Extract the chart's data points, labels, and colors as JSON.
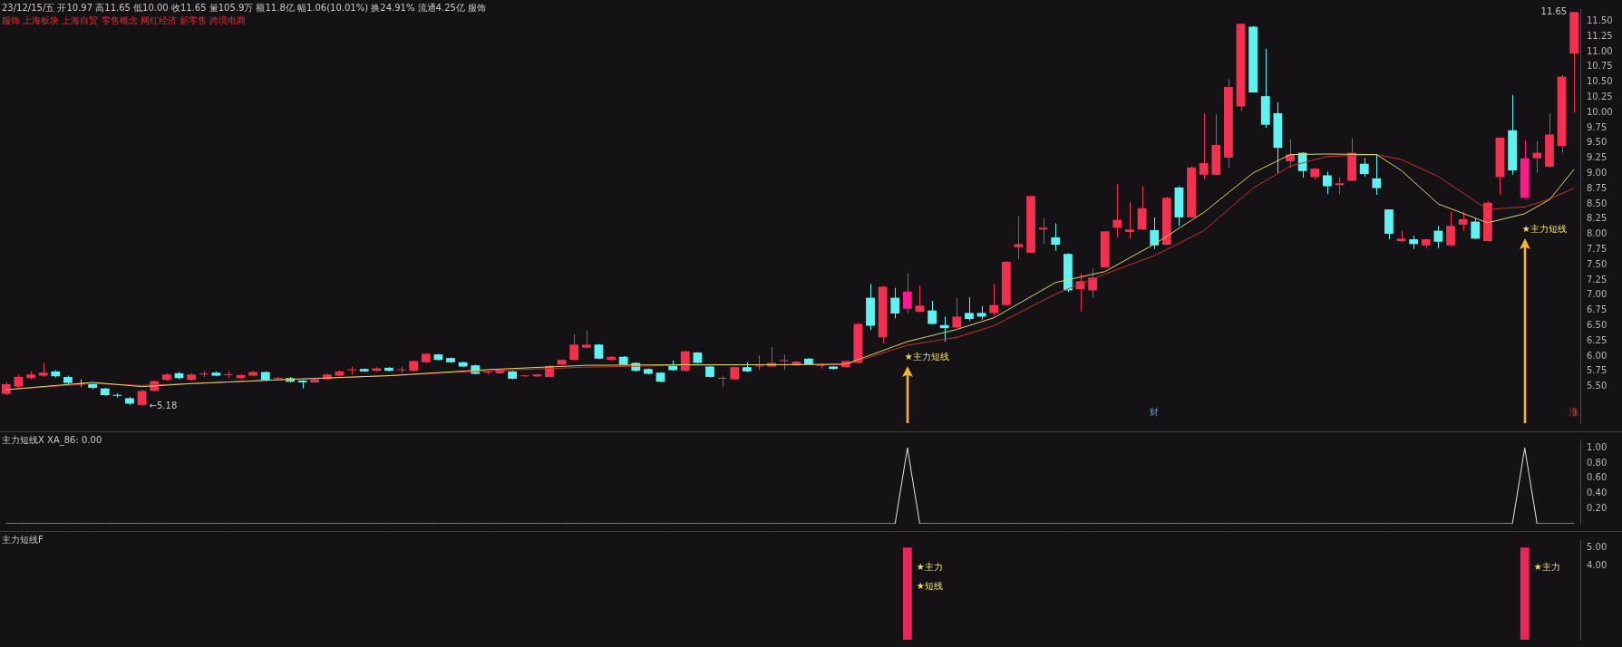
{
  "chart_data": [
    {
      "type": "candlestick",
      "title": "23/12/15/五 开10.97 高11.65 低10.00 收11.65 量105.9万 额11.8亿 幅1.06(10.01%) 换24.91% 流通4.25亿 服饰",
      "subtitle": "服饰 上海板块 上海自贸 零售概念 网红经济 新零售 跨境电商",
      "categories": [
        null,
        null,
        null,
        null,
        null,
        null,
        null,
        null,
        null,
        null,
        null,
        null,
        null,
        null,
        null,
        null,
        null,
        null,
        null,
        null,
        null,
        null,
        null,
        null,
        null,
        null,
        null,
        null,
        null,
        null,
        null,
        null,
        null,
        null,
        null,
        null,
        null,
        null,
        null,
        null,
        null,
        null,
        null,
        null,
        null,
        null,
        null,
        null,
        null,
        null,
        null,
        null,
        null,
        null,
        null,
        null,
        null,
        null,
        null,
        null,
        null,
        null,
        null,
        null,
        null,
        null,
        null,
        null,
        null,
        null,
        null,
        null,
        null,
        null,
        null,
        null,
        null,
        null,
        null,
        null,
        null,
        null,
        null,
        null,
        null,
        null,
        null,
        null,
        null,
        null,
        null,
        null,
        null,
        null,
        null,
        null,
        null,
        null,
        null,
        null,
        null,
        null,
        null,
        null,
        null,
        null,
        null,
        null,
        null,
        null,
        null,
        null,
        null,
        null,
        null,
        null,
        null,
        null,
        null,
        null,
        null,
        null,
        null,
        null,
        null,
        null,
        null,
        null
      ],
      "ohlc": [
        [
          5.38,
          5.58,
          5.36,
          5.54
        ],
        [
          5.5,
          5.7,
          5.48,
          5.66
        ],
        [
          5.64,
          5.75,
          5.62,
          5.7
        ],
        [
          5.68,
          5.89,
          5.66,
          5.73
        ],
        [
          5.75,
          5.77,
          5.65,
          5.67
        ],
        [
          5.66,
          5.68,
          5.54,
          5.56
        ],
        [
          5.55,
          5.62,
          5.5,
          5.54
        ],
        [
          5.54,
          5.56,
          5.46,
          5.48
        ],
        [
          5.47,
          5.48,
          5.35,
          5.36
        ],
        [
          5.36,
          5.39,
          5.32,
          5.35
        ],
        [
          5.31,
          5.33,
          5.2,
          5.22
        ],
        [
          5.2,
          5.45,
          5.18,
          5.43
        ],
        [
          5.43,
          5.6,
          5.42,
          5.59
        ],
        [
          5.61,
          5.72,
          5.6,
          5.7
        ],
        [
          5.72,
          5.74,
          5.62,
          5.64
        ],
        [
          5.61,
          5.72,
          5.6,
          5.7
        ],
        [
          5.7,
          5.76,
          5.66,
          5.71
        ],
        [
          5.73,
          5.75,
          5.67,
          5.68
        ],
        [
          5.69,
          5.75,
          5.64,
          5.7
        ],
        [
          5.64,
          5.71,
          5.62,
          5.69
        ],
        [
          5.68,
          5.76,
          5.67,
          5.74
        ],
        [
          5.74,
          5.75,
          5.59,
          5.6
        ],
        [
          5.63,
          5.66,
          5.6,
          5.64
        ],
        [
          5.64,
          5.66,
          5.57,
          5.58
        ],
        [
          5.6,
          5.61,
          5.47,
          5.57
        ],
        [
          5.57,
          5.63,
          5.56,
          5.62
        ],
        [
          5.62,
          5.71,
          5.61,
          5.7
        ],
        [
          5.68,
          5.77,
          5.67,
          5.75
        ],
        [
          5.77,
          5.83,
          5.7,
          5.78
        ],
        [
          5.79,
          5.8,
          5.74,
          5.75
        ],
        [
          5.76,
          5.82,
          5.75,
          5.8
        ],
        [
          5.81,
          5.82,
          5.75,
          5.76
        ],
        [
          5.77,
          5.83,
          5.72,
          5.78
        ],
        [
          5.76,
          5.93,
          5.75,
          5.92
        ],
        [
          5.9,
          6.05,
          5.89,
          6.04
        ],
        [
          6.03,
          6.04,
          5.93,
          5.94
        ],
        [
          5.97,
          5.98,
          5.89,
          5.9
        ],
        [
          5.9,
          5.91,
          5.82,
          5.83
        ],
        [
          5.85,
          5.86,
          5.7,
          5.71
        ],
        [
          5.73,
          5.76,
          5.7,
          5.74
        ],
        [
          5.72,
          5.79,
          5.71,
          5.78
        ],
        [
          5.75,
          5.76,
          5.62,
          5.63
        ],
        [
          5.67,
          5.69,
          5.66,
          5.68
        ],
        [
          5.67,
          5.71,
          5.66,
          5.7
        ],
        [
          5.66,
          5.85,
          5.65,
          5.84
        ],
        [
          5.86,
          5.95,
          5.85,
          5.94
        ],
        [
          5.94,
          6.36,
          5.93,
          6.19
        ],
        [
          6.14,
          6.42,
          6.13,
          6.19
        ],
        [
          6.19,
          6.2,
          5.95,
          5.96
        ],
        [
          5.94,
          6.0,
          5.93,
          5.99
        ],
        [
          5.99,
          6.0,
          5.85,
          5.86
        ],
        [
          5.89,
          5.9,
          5.75,
          5.76
        ],
        [
          5.79,
          5.8,
          5.7,
          5.71
        ],
        [
          5.73,
          5.74,
          5.57,
          5.58
        ],
        [
          5.84,
          5.93,
          5.76,
          5.77
        ],
        [
          5.76,
          6.09,
          5.75,
          6.08
        ],
        [
          6.06,
          6.07,
          5.88,
          5.89
        ],
        [
          5.83,
          5.84,
          5.65,
          5.66
        ],
        [
          5.63,
          5.68,
          5.49,
          5.64
        ],
        [
          5.62,
          5.83,
          5.61,
          5.82
        ],
        [
          5.82,
          5.9,
          5.74,
          5.75
        ],
        [
          5.83,
          6.01,
          5.77,
          5.84
        ],
        [
          5.83,
          6.15,
          5.82,
          5.89
        ],
        [
          5.92,
          6.03,
          5.77,
          5.93
        ],
        [
          5.85,
          5.92,
          5.84,
          5.91
        ],
        [
          5.96,
          5.97,
          5.85,
          5.86
        ],
        [
          5.84,
          5.88,
          5.8,
          5.85
        ],
        [
          5.83,
          5.84,
          5.78,
          5.79
        ],
        [
          5.82,
          5.93,
          5.81,
          5.92
        ],
        [
          5.89,
          6.55,
          5.88,
          6.53
        ],
        [
          6.96,
          7.19,
          6.43,
          6.5
        ],
        [
          6.31,
          7.15,
          6.21,
          7.14
        ],
        [
          6.96,
          7.12,
          6.62,
          6.7
        ],
        [
          6.78,
          7.36,
          6.7,
          7.06
        ],
        [
          6.73,
          7.16,
          6.72,
          6.83
        ],
        [
          6.75,
          6.91,
          6.52,
          6.53
        ],
        [
          6.51,
          6.65,
          6.24,
          6.46
        ],
        [
          6.47,
          6.96,
          6.46,
          6.65
        ],
        [
          6.71,
          6.97,
          6.58,
          6.61
        ],
        [
          6.71,
          6.82,
          6.6,
          6.65
        ],
        [
          6.71,
          7.19,
          6.66,
          6.84
        ],
        [
          6.84,
          7.56,
          6.83,
          7.55
        ],
        [
          7.79,
          8.3,
          7.59,
          7.84
        ],
        [
          7.7,
          8.63,
          7.69,
          8.63
        ],
        [
          8.08,
          8.27,
          7.84,
          8.11
        ],
        [
          7.95,
          8.18,
          7.73,
          7.83
        ],
        [
          7.68,
          7.69,
          7.05,
          7.08
        ],
        [
          7.1,
          7.36,
          6.73,
          7.23
        ],
        [
          7.08,
          7.44,
          6.96,
          7.29
        ],
        [
          7.46,
          8.05,
          7.45,
          8.05
        ],
        [
          8.11,
          8.83,
          7.95,
          8.24
        ],
        [
          8.04,
          8.53,
          7.93,
          8.08
        ],
        [
          8.08,
          8.79,
          8.07,
          8.43
        ],
        [
          8.07,
          8.28,
          7.76,
          7.82
        ],
        [
          7.83,
          8.62,
          7.82,
          8.6
        ],
        [
          8.77,
          8.79,
          8.14,
          8.28
        ],
        [
          8.28,
          9.12,
          8.27,
          9.1
        ],
        [
          8.98,
          9.99,
          8.9,
          9.17
        ],
        [
          8.98,
          9.97,
          8.97,
          9.47
        ],
        [
          9.26,
          10.55,
          9.09,
          10.42
        ],
        [
          10.1,
          11.46,
          10.02,
          11.46
        ],
        [
          11.41,
          11.42,
          10.33,
          10.33
        ],
        [
          10.27,
          11.05,
          9.75,
          9.8
        ],
        [
          9.99,
          10.17,
          9.01,
          9.42
        ],
        [
          9.2,
          9.56,
          9.09,
          9.31
        ],
        [
          9.34,
          9.35,
          8.93,
          9.04
        ],
        [
          8.94,
          9.09,
          8.9,
          9.08
        ],
        [
          8.97,
          9.03,
          8.66,
          8.79
        ],
        [
          8.81,
          8.94,
          8.66,
          8.84
        ],
        [
          8.88,
          9.58,
          8.87,
          9.34
        ],
        [
          9.16,
          9.26,
          8.95,
          8.99
        ],
        [
          8.92,
          9.31,
          8.65,
          8.76
        ],
        [
          8.41,
          8.41,
          7.92,
          8.01
        ],
        [
          7.89,
          8.06,
          7.87,
          7.93
        ],
        [
          7.92,
          7.98,
          7.76,
          7.84
        ],
        [
          7.82,
          7.93,
          7.77,
          7.92
        ],
        [
          8.06,
          8.14,
          7.77,
          7.88
        ],
        [
          7.82,
          8.37,
          7.81,
          8.14
        ],
        [
          8.16,
          8.37,
          8.06,
          8.25
        ],
        [
          8.21,
          8.26,
          7.92,
          7.93
        ],
        [
          7.89,
          8.55,
          7.88,
          8.52
        ],
        [
          8.94,
          9.59,
          8.65,
          9.59
        ],
        [
          9.71,
          10.29,
          8.98,
          9.05
        ],
        [
          9.25,
          9.55,
          8.59,
          8.6
        ],
        [
          9.25,
          9.53,
          9.01,
          9.34
        ],
        [
          9.11,
          9.99,
          9.1,
          9.64
        ],
        [
          9.45,
          10.62,
          9.34,
          10.59
        ],
        [
          10.97,
          11.65,
          10.0,
          11.65
        ]
      ],
      "colors": [
        "#f2304f",
        "#f2304f",
        "#f2304f",
        "#f2304f",
        "#5ef2f2",
        "#5ef2f2",
        "#5ef2f2",
        "#5ef2f2",
        "#5ef2f2",
        "#5ef2f2",
        "#5ef2f2",
        "#f2304f",
        "#f2304f",
        "#f2304f",
        "#5ef2f2",
        "#f2304f",
        "#f2304f",
        "#5ef2f2",
        "#f2304f",
        "#f2304f",
        "#f2304f",
        "#5ef2f2",
        "#f2304f",
        "#5ef2f2",
        "#5ef2f2",
        "#f2304f",
        "#f2304f",
        "#f2304f",
        "#f2304f",
        "#5ef2f2",
        "#f2304f",
        "#5ef2f2",
        "#f2304f",
        "#f2304f",
        "#f2304f",
        "#5ef2f2",
        "#5ef2f2",
        "#5ef2f2",
        "#5ef2f2",
        "#f2304f",
        "#f2304f",
        "#5ef2f2",
        "#f2304f",
        "#f2304f",
        "#f2304f",
        "#f2304f",
        "#f2304f",
        "#f2304f",
        "#5ef2f2",
        "#f2304f",
        "#5ef2f2",
        "#5ef2f2",
        "#5ef2f2",
        "#5ef2f2",
        "#5ef2f2",
        "#f2304f",
        "#5ef2f2",
        "#5ef2f2",
        "#f2304f",
        "#f2304f",
        "#5ef2f2",
        "#f2304f",
        "#f2304f",
        "#f2304f",
        "#f2304f",
        "#5ef2f2",
        "#f2304f",
        "#5ef2f2",
        "#f2304f",
        "#f2304f",
        "#5ef2f2",
        "#f2304f",
        "#5ef2f2",
        "#ff1a8c",
        "#f2304f",
        "#5ef2f2",
        "#5ef2f2",
        "#f2304f",
        "#5ef2f2",
        "#5ef2f2",
        "#f2304f",
        "#f2304f",
        "#f2304f",
        "#f2304f",
        "#f2304f",
        "#5ef2f2",
        "#5ef2f2",
        "#f2304f",
        "#f2304f",
        "#f2304f",
        "#f2304f",
        "#f2304f",
        "#f2304f",
        "#5ef2f2",
        "#f2304f",
        "#5ef2f2",
        "#f2304f",
        "#f2304f",
        "#f2304f",
        "#f2304f",
        "#f2304f",
        "#5ef2f2",
        "#5ef2f2",
        "#5ef2f2",
        "#f2304f",
        "#5ef2f2",
        "#f2304f",
        "#5ef2f2",
        "#f2304f",
        "#f2304f",
        "#5ef2f2",
        "#5ef2f2",
        "#5ef2f2",
        "#f2304f",
        "#5ef2f2",
        "#f2304f",
        "#5ef2f2",
        "#f2304f",
        "#f2304f",
        "#5ef2f2",
        "#f2304f",
        "#f2304f",
        "#5ef2f2",
        "#ff1a8c",
        "#f2304f",
        "#f2304f",
        "#f2304f",
        "#f2304f"
      ],
      "series": [
        {
          "type": "line",
          "color": "#d8d66c",
          "values": [
            5.45,
            null,
            null,
            null,
            null,
            null,
            null,
            5.57,
            null,
            null,
            null,
            5.5,
            null,
            null,
            null,
            5.55,
            null,
            null,
            null,
            null,
            null,
            null,
            null,
            5.62,
            null,
            null,
            null,
            null,
            null,
            null,
            null,
            5.68,
            null,
            null,
            null,
            null,
            null,
            null,
            null,
            5.78,
            null,
            null,
            null,
            null,
            null,
            null,
            null,
            5.85,
            null,
            null,
            null,
            null,
            null,
            null,
            null,
            5.86,
            null,
            null,
            null,
            null,
            null,
            null,
            null,
            5.86,
            null,
            null,
            null,
            null,
            5.87,
            null,
            null,
            null,
            null,
            6.24,
            null,
            null,
            null,
            6.44,
            null,
            null,
            6.63,
            null,
            null,
            null,
            null,
            7.21,
            null,
            null,
            null,
            7.39,
            null,
            null,
            null,
            7.84,
            null,
            null,
            null,
            8.36,
            null,
            null,
            null,
            9.01,
            null,
            null,
            9.31,
            null,
            null,
            9.32,
            null,
            null,
            null,
            9.31,
            null,
            9.05,
            null,
            null,
            8.5,
            null,
            null,
            null,
            8.19,
            null,
            null,
            8.34,
            null,
            8.57,
            null,
            9.07
          ]
        },
        {
          "type": "line",
          "color": "#c8302c",
          "values": [
            5.45,
            null,
            null,
            null,
            null,
            null,
            null,
            5.55,
            null,
            null,
            null,
            5.52,
            null,
            null,
            null,
            5.55,
            null,
            null,
            null,
            null,
            null,
            null,
            null,
            5.62,
            null,
            null,
            null,
            null,
            null,
            null,
            null,
            5.68,
            null,
            null,
            null,
            null,
            null,
            null,
            null,
            5.76,
            null,
            null,
            null,
            null,
            null,
            null,
            null,
            5.82,
            null,
            null,
            null,
            null,
            null,
            null,
            null,
            5.85,
            null,
            null,
            null,
            null,
            null,
            null,
            null,
            5.86,
            null,
            null,
            null,
            null,
            5.86,
            null,
            null,
            null,
            null,
            6.18,
            null,
            null,
            null,
            6.31,
            null,
            null,
            6.5,
            null,
            null,
            null,
            null,
            7.02,
            null,
            null,
            null,
            7.35,
            null,
            null,
            null,
            7.65,
            null,
            null,
            null,
            8.06,
            null,
            null,
            null,
            8.76,
            null,
            null,
            9.12,
            null,
            null,
            9.28,
            null,
            null,
            null,
            9.31,
            null,
            9.23,
            null,
            null,
            8.95,
            null,
            null,
            null,
            8.41,
            null,
            null,
            8.45,
            null,
            8.58,
            null,
            8.76
          ]
        }
      ],
      "ylim": [
        4.9,
        11.7
      ],
      "yticks": [
        {
          "value": 5.5,
          "label": "5.50"
        },
        {
          "value": 5.75,
          "label": "5.75"
        },
        {
          "value": 6,
          "label": "6.00"
        },
        {
          "value": 6.25,
          "label": "6.25"
        },
        {
          "value": 6.5,
          "label": "6.50"
        },
        {
          "value": 6.75,
          "label": "6.75"
        },
        {
          "value": 7,
          "label": "7.00"
        },
        {
          "value": 7.25,
          "label": "7.25"
        },
        {
          "value": 7.5,
          "label": "7.50"
        },
        {
          "value": 7.75,
          "label": "7.75"
        },
        {
          "value": 8,
          "label": "8.00"
        },
        {
          "value": 8.25,
          "label": "8.25"
        },
        {
          "value": 8.5,
          "label": "8.50"
        },
        {
          "value": 8.75,
          "label": "8.75"
        },
        {
          "value": 9,
          "label": "9.00"
        },
        {
          "value": 9.25,
          "label": "9.25"
        },
        {
          "value": 9.5,
          "label": "9.50"
        },
        {
          "value": 9.75,
          "label": "9.75"
        },
        {
          "value": 10,
          "label": "10.00"
        },
        {
          "value": 10.25,
          "label": "10.25"
        },
        {
          "value": 10.5,
          "label": "10.50"
        },
        {
          "value": 10.75,
          "label": "10.75"
        },
        {
          "value": 11,
          "label": "11.00"
        },
        {
          "value": 11.25,
          "label": "11.25"
        },
        {
          "value": 11.5,
          "label": "11.50"
        }
      ],
      "tick_labels": "y",
      "annotations": [
        "★主力短线",
        "★主力短线",
        "←5.18",
        "11.65",
        "财",
        "涨"
      ]
    },
    {
      "type": "line",
      "title": "主力短线X  XA_86: 0.00",
      "categories": [
        null,
        null,
        null,
        null,
        null,
        null,
        null,
        null,
        null,
        null,
        null,
        null,
        null,
        null,
        null,
        null,
        null,
        null,
        null,
        null,
        null,
        null,
        null,
        null,
        null,
        null,
        null,
        null,
        null,
        null,
        null,
        null,
        null,
        null,
        null,
        null,
        null,
        null,
        null,
        null,
        null,
        null,
        null,
        null,
        null,
        null,
        null,
        null,
        null,
        null,
        null,
        null,
        null,
        null,
        null,
        null,
        null,
        null,
        null,
        null,
        null,
        null,
        null,
        null,
        null,
        null,
        null,
        null,
        null,
        null,
        null,
        null,
        null,
        null,
        null,
        null,
        null,
        null,
        null,
        null,
        null,
        null,
        null,
        null,
        null,
        null,
        null,
        null,
        null,
        null,
        null,
        null,
        null,
        null,
        null,
        null,
        null,
        null,
        null,
        null,
        null,
        null,
        null,
        null,
        null,
        null,
        null,
        null,
        null,
        null,
        null,
        null,
        null,
        null,
        null,
        null,
        null,
        null,
        null,
        null,
        null,
        null,
        null,
        null,
        null,
        null,
        null,
        null
      ],
      "series": [
        {
          "color": "#e6e6e6",
          "values": [
            0,
            0,
            0,
            0,
            0,
            0,
            0,
            0,
            0,
            0,
            0,
            0,
            0,
            0,
            0,
            0,
            0,
            0,
            0,
            0,
            0,
            0,
            0,
            0,
            0,
            0,
            0,
            0,
            0,
            0,
            0,
            0,
            0,
            0,
            0,
            0,
            0,
            0,
            0,
            0,
            0,
            0,
            0,
            0,
            0,
            0,
            0,
            0,
            0,
            0,
            0,
            0,
            0,
            0,
            0,
            0,
            0,
            0,
            0,
            0,
            0,
            0,
            0,
            0,
            0,
            0,
            0,
            0,
            0,
            0,
            0,
            0,
            0,
            1,
            0,
            0,
            0,
            0,
            0,
            0,
            0,
            0,
            0,
            0,
            0,
            0,
            0,
            0,
            0,
            0,
            0,
            0,
            0,
            0,
            0,
            0,
            0,
            0,
            0,
            0,
            0,
            0,
            0,
            0,
            0,
            0,
            0,
            0,
            0,
            0,
            0,
            0,
            0,
            0,
            0,
            0,
            0,
            0,
            0,
            0,
            0,
            0,
            0,
            1,
            0,
            0,
            0,
            0
          ]
        }
      ],
      "ylim": [
        0,
        1.1
      ],
      "yticks": [
        {
          "value": 0.2,
          "label": "0.20"
        },
        {
          "value": 0.4,
          "label": "0.40"
        },
        {
          "value": 0.6,
          "label": "0.60"
        },
        {
          "value": 0.8,
          "label": "0.80"
        },
        {
          "value": 1,
          "label": "1.00"
        }
      ],
      "tick_labels": "y"
    },
    {
      "type": "bar",
      "title": "主力短线F",
      "categories": [
        null,
        null,
        null,
        null,
        null,
        null,
        null,
        null,
        null,
        null,
        null,
        null,
        null,
        null,
        null,
        null,
        null,
        null,
        null,
        null,
        null,
        null,
        null,
        null,
        null,
        null,
        null,
        null,
        null,
        null,
        null,
        null,
        null,
        null,
        null,
        null,
        null,
        null,
        null,
        null,
        null,
        null,
        null,
        null,
        null,
        null,
        null,
        null,
        null,
        null,
        null,
        null,
        null,
        null,
        null,
        null,
        null,
        null,
        null,
        null,
        null,
        null,
        null,
        null,
        null,
        null,
        null,
        null,
        null,
        null,
        null,
        null,
        null,
        null,
        null,
        null,
        null,
        null,
        null,
        null,
        null,
        null,
        null,
        null,
        null,
        null,
        null,
        null,
        null,
        null,
        null,
        null,
        null,
        null,
        null,
        null,
        null,
        null,
        null,
        null,
        null,
        null,
        null,
        null,
        null,
        null,
        null,
        null,
        null,
        null,
        null,
        null,
        null,
        null,
        null,
        null,
        null,
        null,
        null,
        null,
        null,
        null,
        null,
        null,
        null,
        null,
        null,
        null
      ],
      "values": [
        null,
        null,
        null,
        null,
        null,
        null,
        null,
        null,
        null,
        null,
        null,
        null,
        null,
        null,
        null,
        null,
        null,
        null,
        null,
        null,
        null,
        null,
        null,
        null,
        null,
        null,
        null,
        null,
        null,
        null,
        null,
        null,
        null,
        null,
        null,
        null,
        null,
        null,
        null,
        null,
        null,
        null,
        null,
        null,
        null,
        null,
        null,
        null,
        null,
        null,
        null,
        null,
        null,
        null,
        null,
        null,
        null,
        null,
        null,
        null,
        null,
        null,
        null,
        null,
        null,
        null,
        null,
        null,
        null,
        null,
        null,
        null,
        null,
        5,
        null,
        null,
        null,
        null,
        null,
        null,
        null,
        null,
        null,
        null,
        null,
        null,
        null,
        null,
        null,
        null,
        null,
        null,
        null,
        null,
        null,
        null,
        null,
        null,
        null,
        null,
        null,
        null,
        null,
        null,
        null,
        null,
        null,
        null,
        null,
        null,
        null,
        null,
        null,
        null,
        null,
        null,
        null,
        null,
        null,
        null,
        null,
        null,
        null,
        5,
        null,
        null,
        null,
        null
      ],
      "color": "#e8285a",
      "ylim": [
        0,
        5.4
      ],
      "yticks": [
        {
          "value": 4,
          "label": "4.00"
        },
        {
          "value": 5,
          "label": "5.00"
        }
      ],
      "tick_labels": "y",
      "annotations": [
        "★主力",
        "★短线",
        "★主力"
      ]
    }
  ]
}
